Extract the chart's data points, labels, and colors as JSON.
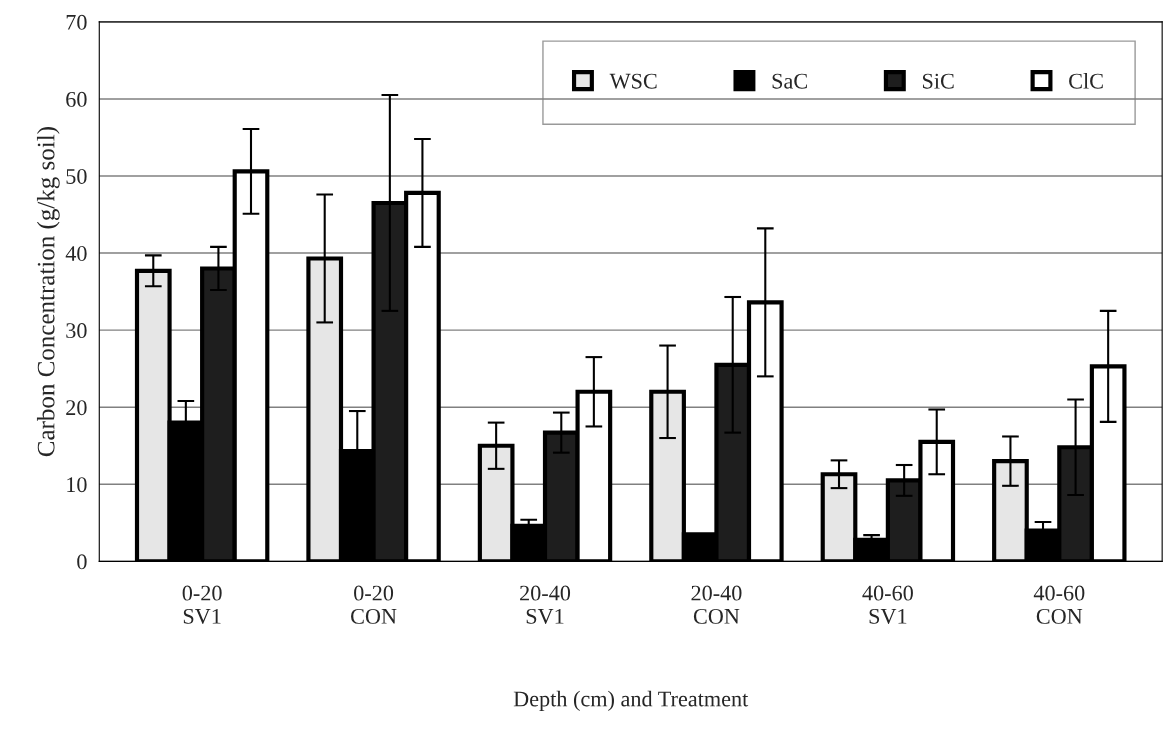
{
  "chart_data": {
    "type": "bar",
    "xlabel": "Depth (cm) and Treatment",
    "ylabel": "Carbon Concentration (g/kg soil)",
    "categories": [
      "0-20\nSV1",
      "0-20\nCON",
      "20-40\nSV1",
      "20-40\nCON",
      "40-60\nSV1",
      "40-60\nCON"
    ],
    "series": [
      {
        "name": "WSC",
        "color": "#e6e6e6",
        "values": [
          37.7,
          39.3,
          15,
          22,
          11.3,
          13
        ],
        "errors": [
          2,
          8.3,
          3,
          6,
          1.8,
          3.2
        ]
      },
      {
        "name": "SaC",
        "color": "#000000",
        "values": [
          18,
          14.3,
          4.6,
          3.5,
          2.8,
          4
        ],
        "errors": [
          2.8,
          5.2,
          0.8,
          null,
          0.6,
          1.1
        ]
      },
      {
        "name": "SiC",
        "color": "#1e1e1e",
        "values": [
          38,
          46.5,
          16.7,
          25.5,
          10.5,
          14.8
        ],
        "errors": [
          2.8,
          14,
          2.6,
          8.8,
          2,
          6.2
        ]
      },
      {
        "name": "ClC",
        "color": "#ffffff",
        "values": [
          50.6,
          47.8,
          22,
          33.6,
          15.5,
          25.3
        ],
        "errors": [
          5.5,
          7,
          4.5,
          9.6,
          4.2,
          7.2
        ]
      }
    ],
    "ylim": [
      0,
      70
    ],
    "yticks": [
      0,
      10,
      20,
      30,
      40,
      50,
      60,
      70
    ],
    "grid": "y",
    "legend": "top right"
  }
}
